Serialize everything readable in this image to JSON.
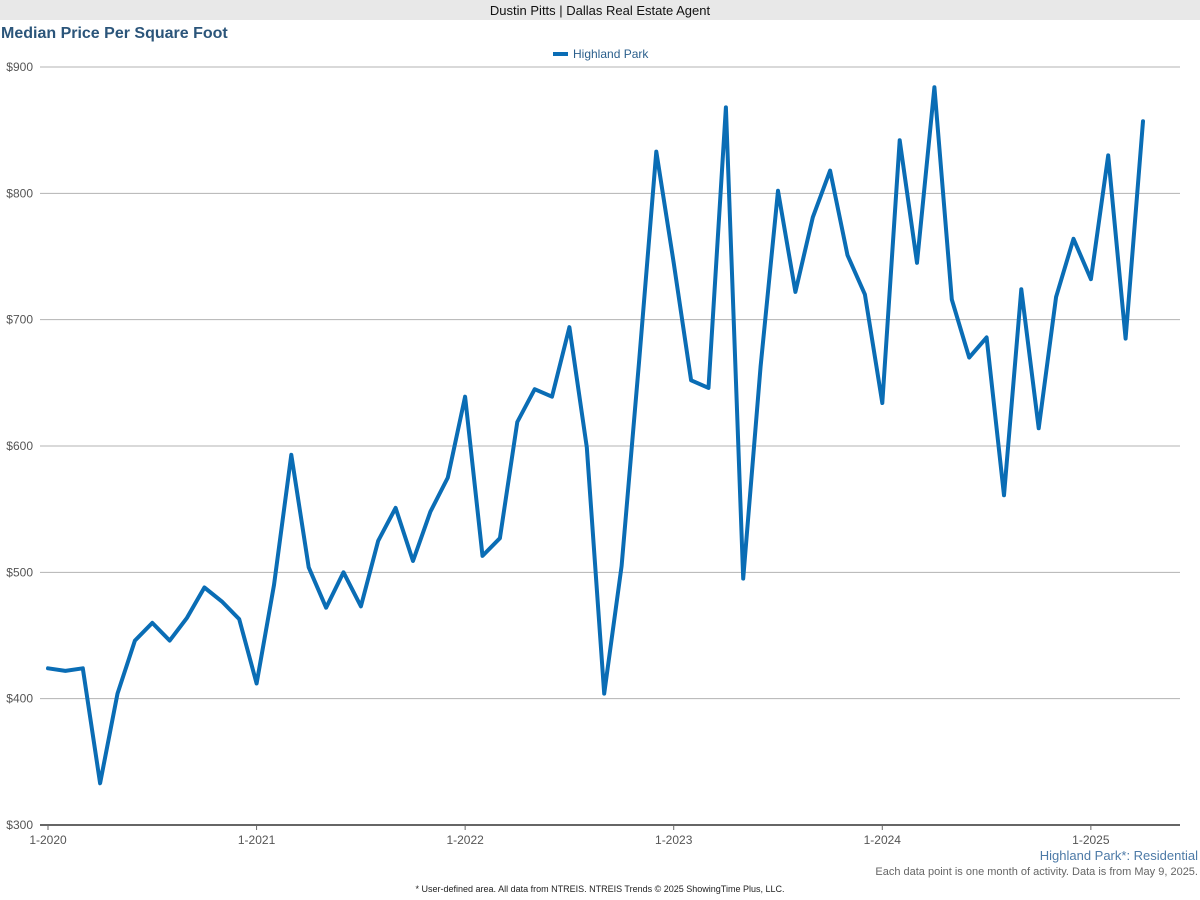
{
  "header": {
    "agent": "Dustin Pitts | Dallas Real Estate Agent"
  },
  "chart_data": {
    "type": "line",
    "title": "Median Price Per Square Foot",
    "xlabel": "",
    "ylabel": "",
    "ylim": [
      300,
      900
    ],
    "y_ticks": [
      300,
      400,
      500,
      600,
      700,
      800,
      900
    ],
    "y_tick_labels": [
      "$300",
      "$400",
      "$500",
      "$600",
      "$700",
      "$800",
      "$900"
    ],
    "x_tick_labels": [
      "1-2020",
      "1-2021",
      "1-2022",
      "1-2023",
      "1-2024",
      "1-2025"
    ],
    "x_tick_month_index": [
      0,
      12,
      24,
      36,
      48,
      60
    ],
    "x_range_months": [
      0,
      63
    ],
    "series": [
      {
        "name": "Highland Park",
        "color": "#0a6db5",
        "values": [
          424,
          422,
          424,
          333,
          404,
          446,
          460,
          446,
          464,
          488,
          477,
          463,
          412,
          490,
          593,
          504,
          472,
          500,
          473,
          525,
          551,
          509,
          548,
          575,
          639,
          513,
          527,
          619,
          645,
          639,
          694,
          599,
          404,
          505,
          666,
          833,
          745,
          652,
          646,
          868,
          495,
          663,
          802,
          722,
          781,
          818,
          751,
          720,
          634,
          842,
          745,
          884,
          716,
          670,
          686,
          561,
          724,
          614,
          718,
          764,
          732,
          830,
          685,
          857
        ]
      }
    ]
  },
  "footer": {
    "filter_label": "Highland Park*: Residential",
    "note": "Each data point is one month of activity. Data is from May 9, 2025.",
    "credit": "* User-defined area. All data from NTREIS. NTREIS Trends © 2025 ShowingTime Plus, LLC."
  }
}
